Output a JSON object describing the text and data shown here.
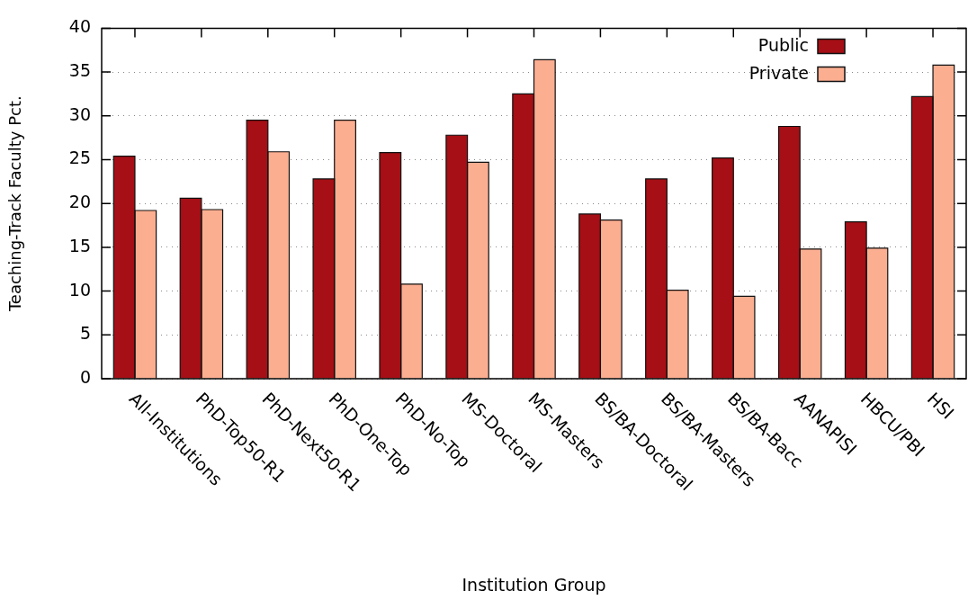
{
  "chart_data": {
    "type": "bar",
    "xlabel": "Institution Group",
    "ylabel": "Teaching-Track Faculty Pct.",
    "categories": [
      "All-Institutions",
      "PhD-Top50-R1",
      "PhD-Next50-R1",
      "PhD-One-Top",
      "PhD-No-Top",
      "MS-Doctoral",
      "MS-Masters",
      "BS/BA-Doctoral",
      "BS/BA-Masters",
      "BS/BA-Bacc",
      "AANAPISI",
      "HBCU/PBI",
      "HSI"
    ],
    "series": [
      {
        "name": "Public",
        "color": "#a50f15",
        "values": [
          25.4,
          20.6,
          29.5,
          22.8,
          25.8,
          27.8,
          32.5,
          18.8,
          22.8,
          25.2,
          28.8,
          17.9,
          32.2
        ]
      },
      {
        "name": "Private",
        "color": "#fcae91",
        "values": [
          19.2,
          19.3,
          25.9,
          29.5,
          10.8,
          24.7,
          36.4,
          18.1,
          10.1,
          9.4,
          14.8,
          14.9,
          35.8
        ]
      }
    ],
    "ylim": [
      0,
      40
    ],
    "yticks": [
      0,
      5,
      10,
      15,
      20,
      25,
      30,
      35,
      40
    ],
    "grid": "y",
    "legend": "top right"
  }
}
